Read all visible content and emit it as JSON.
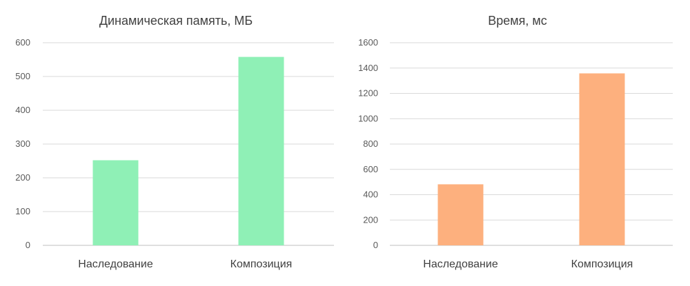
{
  "chart_data": [
    {
      "type": "bar",
      "title": "Динамическая память, МБ",
      "categories": [
        "Наследование",
        "Композиция"
      ],
      "values": [
        252,
        558
      ],
      "ylim": [
        0,
        600
      ],
      "yticks": [
        0,
        100,
        200,
        300,
        400,
        500,
        600
      ],
      "grid": true,
      "color": "#8ff0b6"
    },
    {
      "type": "bar",
      "title": "Время, мс",
      "categories": [
        "Наследование",
        "Композиция"
      ],
      "values": [
        482,
        1358
      ],
      "ylim": [
        0,
        1600
      ],
      "yticks": [
        0,
        200,
        400,
        600,
        800,
        1000,
        1200,
        1400,
        1600
      ],
      "grid": true,
      "color": "#fdb07e"
    }
  ]
}
